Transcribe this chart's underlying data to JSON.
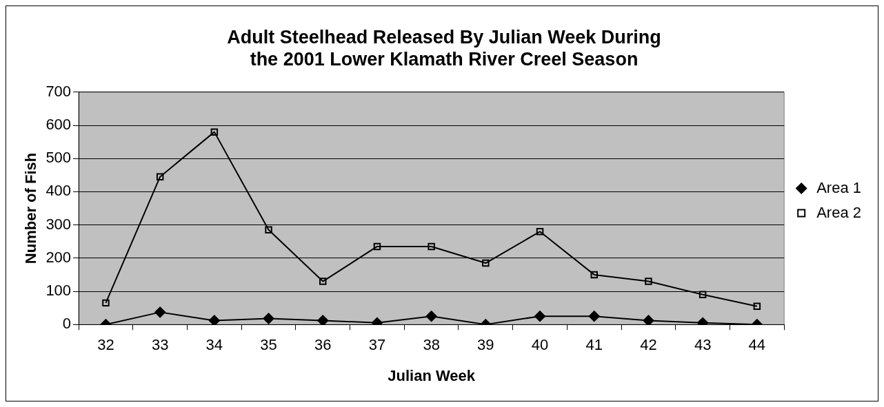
{
  "chart_data": {
    "type": "line",
    "title": "Adult Steelhead Released By Julian Week During the 2001 Lower Klamath River Creel Season",
    "xlabel": "Julian Week",
    "ylabel": "Number of Fish",
    "categories": [
      "32",
      "33",
      "34",
      "35",
      "36",
      "37",
      "38",
      "39",
      "40",
      "41",
      "42",
      "43",
      "44"
    ],
    "series": [
      {
        "name": "Area 1",
        "color": "#000000",
        "marker": "diamond",
        "values": [
          0,
          37,
          12,
          18,
          12,
          5,
          25,
          0,
          25,
          25,
          12,
          5,
          0
        ]
      },
      {
        "name": "Area 2",
        "color": "#000000",
        "marker": "square",
        "values": [
          65,
          445,
          580,
          285,
          130,
          235,
          235,
          185,
          280,
          150,
          130,
          90,
          55
        ]
      }
    ],
    "ylim": [
      0,
      700
    ],
    "yticks": [
      0,
      100,
      200,
      300,
      400,
      500,
      600,
      700
    ],
    "grid": "y",
    "legend": "right",
    "line_style": "solid"
  }
}
